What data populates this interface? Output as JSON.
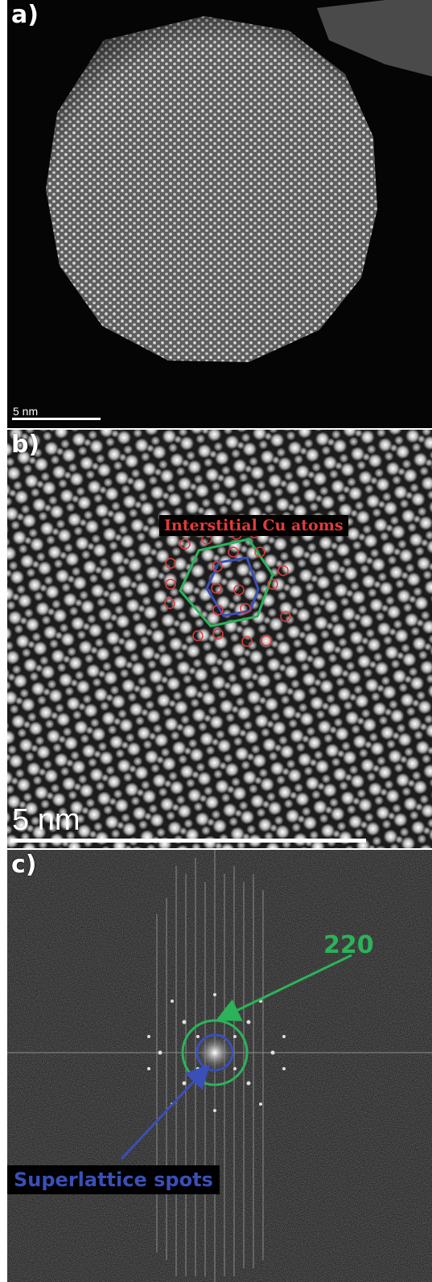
{
  "panels": {
    "a": {
      "label": "a)",
      "scale_bar": "5 nm"
    },
    "b": {
      "label": "b)",
      "scale_bar": "5 nm",
      "annotation": "Interstitial Cu atoms"
    },
    "c": {
      "label": "c)",
      "annotation_green": "220",
      "annotation_blue": "Superlattice spots"
    }
  },
  "colors": {
    "red_marker": "#e23b3b",
    "green_marker": "#2bb35a",
    "blue_marker": "#3a4fb8"
  }
}
